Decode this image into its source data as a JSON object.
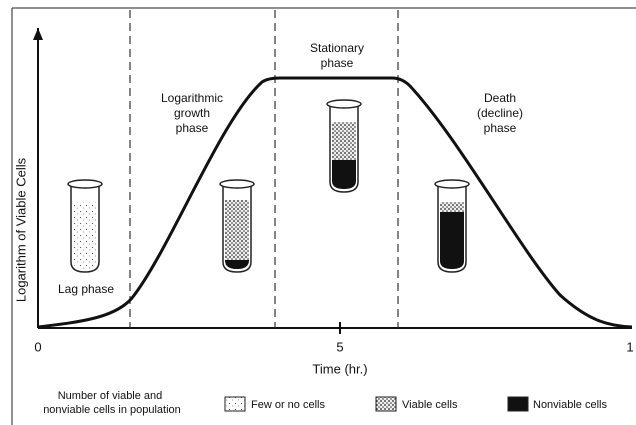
{
  "y_axis_label": "Logarithm of Viable Cells",
  "x_axis_label": "Time (hr.)",
  "x_ticks": [
    "0",
    "5",
    "1"
  ],
  "phases": [
    {
      "lines": [
        "Lag phase"
      ]
    },
    {
      "lines": [
        "Logarithmic",
        "growth",
        "phase"
      ]
    },
    {
      "lines": [
        "Stationary",
        "phase"
      ]
    },
    {
      "lines": [
        "Death",
        "(decline)",
        "phase"
      ]
    }
  ],
  "legend": {
    "title_lines": [
      "Number of viable and",
      "nonviable cells in population"
    ],
    "items": [
      "Few or no cells",
      "Viable cells",
      "Nonviable cells"
    ]
  }
}
